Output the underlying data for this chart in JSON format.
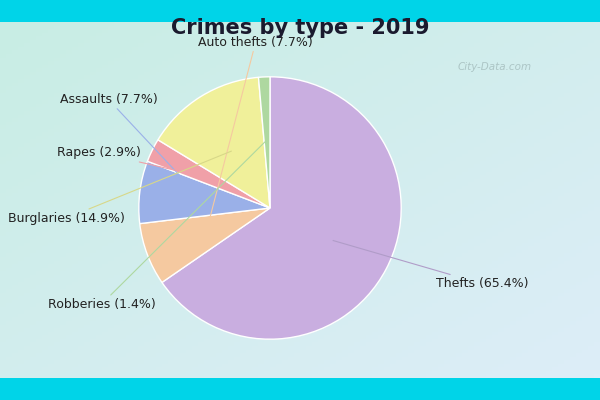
{
  "title": "Crimes by type - 2019",
  "plot_values": [
    65.4,
    7.7,
    7.7,
    2.9,
    14.9,
    1.4
  ],
  "plot_colors": [
    "#c9aee0",
    "#f5c9a0",
    "#9ab0e8",
    "#f0a0a8",
    "#f0f09a",
    "#aed8a0"
  ],
  "plot_labels": [
    "Thefts (65.4%)",
    "Auto thefts (7.7%)",
    "Assaults (7.7%)",
    "Rapes (2.9%)",
    "Burglaries (14.9%)",
    "Robberies (1.4%)"
  ],
  "background_border": "#00d4e8",
  "background_inner_tl": "#c8ede4",
  "background_inner_br": "#ddeef8",
  "title_fontsize": 15,
  "label_fontsize": 9,
  "watermark": "City-Data.com",
  "label_info": [
    {
      "idx": 0,
      "text": "Thefts (65.4%)",
      "fx": 0.855,
      "fy": 0.295,
      "ha": "left",
      "arrow_color": "#b09cc8"
    },
    {
      "idx": 1,
      "text": "Auto thefts (7.7%)",
      "fx": 0.415,
      "fy": 0.885,
      "ha": "center",
      "arrow_color": "#f5c9a0"
    },
    {
      "idx": 2,
      "text": "Assaults (7.7%)",
      "fx": 0.175,
      "fy": 0.745,
      "ha": "right",
      "arrow_color": "#9ab0e8"
    },
    {
      "idx": 3,
      "text": "Rapes (2.9%)",
      "fx": 0.135,
      "fy": 0.615,
      "ha": "right",
      "arrow_color": "#f0a0a8"
    },
    {
      "idx": 4,
      "text": "Burglaries (14.9%)",
      "fx": 0.095,
      "fy": 0.455,
      "ha": "right",
      "arrow_color": "#d8d888"
    },
    {
      "idx": 5,
      "text": "Robberies (1.4%)",
      "fx": 0.17,
      "fy": 0.245,
      "ha": "right",
      "arrow_color": "#aed8a0"
    }
  ]
}
